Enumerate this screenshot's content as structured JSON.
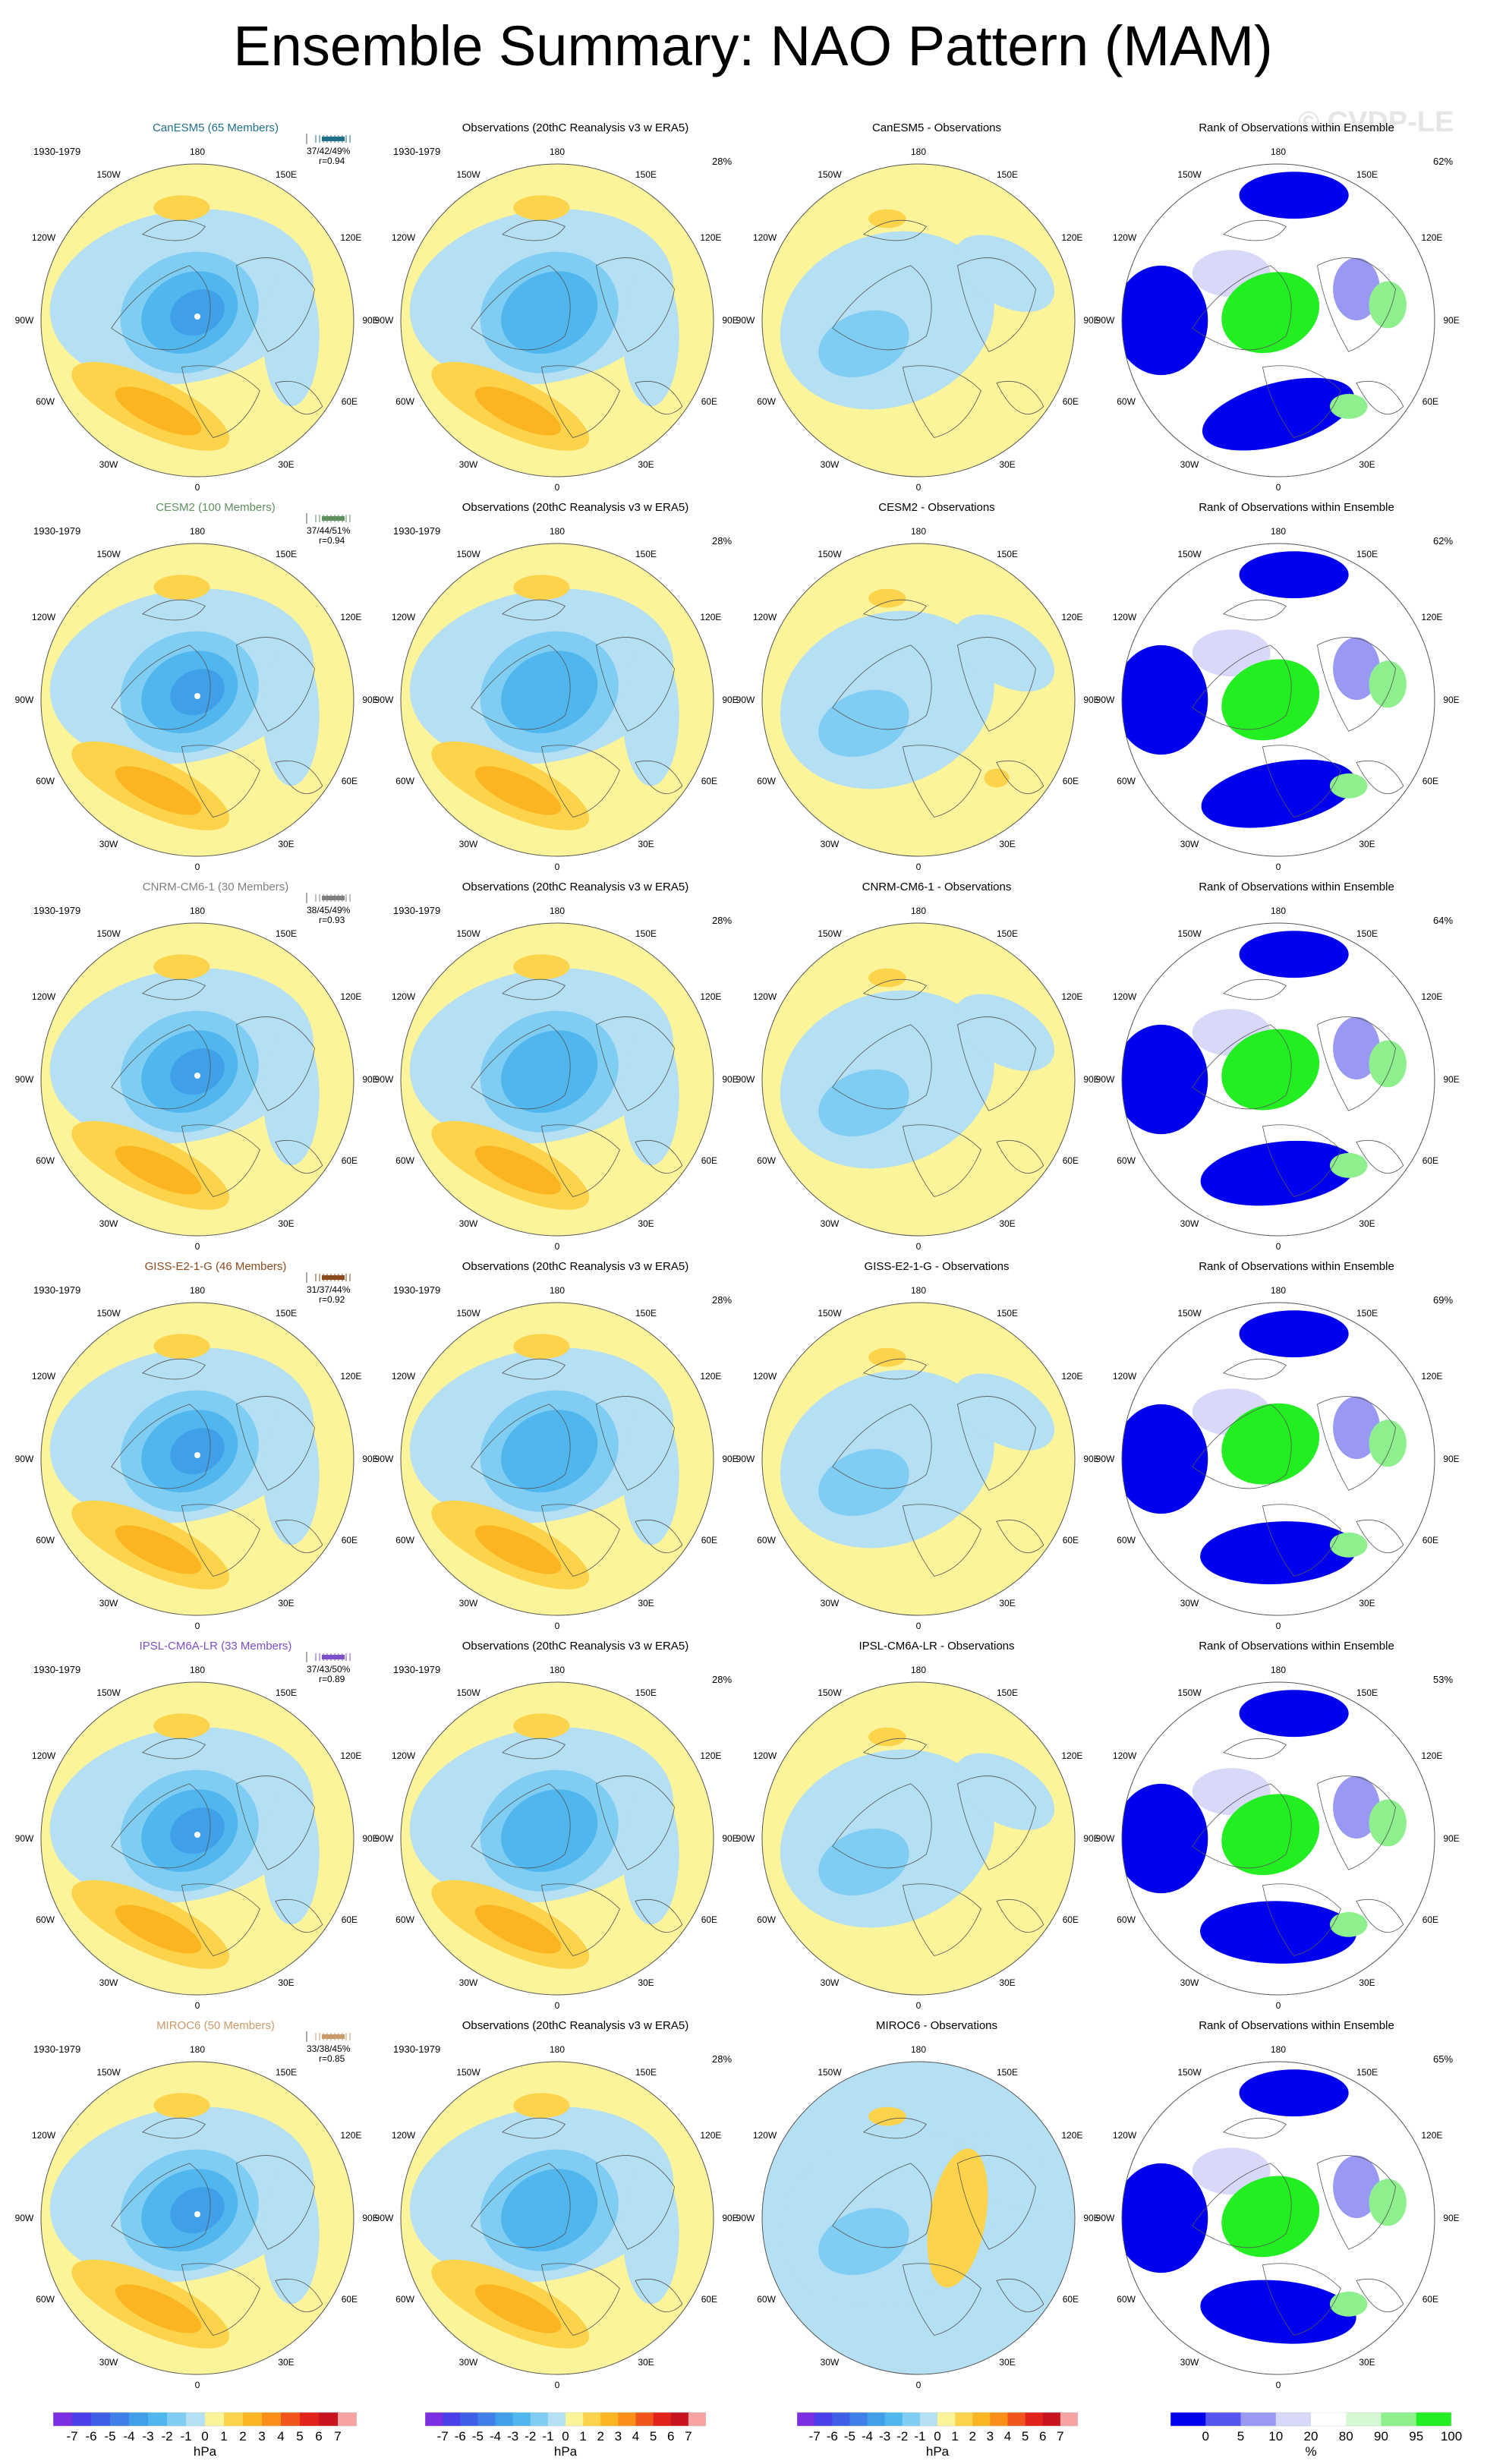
{
  "title": "Ensemble Summary: NAO Pattern (MAM)",
  "watermark": "© CVDP-LE",
  "period": "1930-1979",
  "obs_title": "Observations (20thC Reanalysis v3 w ERA5)",
  "obs_pct": "28%",
  "rank_title": "Rank of Observations within Ensemble",
  "longitudes": {
    "n": "180",
    "nw": "150W",
    "ne": "150E",
    "wnw": "120W",
    "ene": "120E",
    "w": "90W",
    "e": "90E",
    "wsw": "60W",
    "ese": "60E",
    "sw": "30W",
    "se": "30E",
    "s": "0"
  },
  "rows": [
    {
      "model": "CanESM5 (65 Members)",
      "model_color": "#1f6f8b",
      "stat1": "37/42/49%",
      "stat2": "r=0.94",
      "diff_title": "CanESM5 - Observations",
      "rank_pct": "62%"
    },
    {
      "model": "CESM2 (100 Members)",
      "model_color": "#5f8f5f",
      "stat1": "37/44/51%",
      "stat2": "r=0.94",
      "diff_title": "CESM2 - Observations",
      "rank_pct": "62%"
    },
    {
      "model": "CNRM-CM6-1 (30 Members)",
      "model_color": "#7f7f7f",
      "stat1": "38/45/49%",
      "stat2": "r=0.93",
      "diff_title": "CNRM-CM6-1 - Observations",
      "rank_pct": "64%"
    },
    {
      "model": "GISS-E2-1-G (46 Members)",
      "model_color": "#8b4a1e",
      "stat1": "31/37/44%",
      "stat2": "r=0.92",
      "diff_title": "GISS-E2-1-G - Observations",
      "rank_pct": "69%"
    },
    {
      "model": "IPSL-CM6A-LR (33 Members)",
      "model_color": "#7a4fc9",
      "stat1": "37/43/50%",
      "stat2": "r=0.89",
      "diff_title": "IPSL-CM6A-LR - Observations",
      "rank_pct": "53%"
    },
    {
      "model": "MIROC6 (50 Members)",
      "model_color": "#c79a6a",
      "stat1": "33/38/45%",
      "stat2": "r=0.85",
      "diff_title": "MIROC6 - Observations",
      "rank_pct": "65%"
    }
  ],
  "colorbar_hpa": {
    "labels": [
      "-7",
      "-6",
      "-5",
      "-4",
      "-3",
      "-2",
      "-1",
      "0",
      "1",
      "2",
      "3",
      "4",
      "5",
      "6",
      "7"
    ],
    "colors": [
      "#7b2fe0",
      "#4a3fe8",
      "#3f5fe8",
      "#3f7fe8",
      "#3f9fe8",
      "#4fb7ee",
      "#7fcdf2",
      "#b5dff3",
      "#fbf49a",
      "#fcd34a",
      "#fcb522",
      "#f98f19",
      "#f0561c",
      "#e2231b",
      "#c8141e",
      "#f7a3a3"
    ],
    "units": "hPa"
  },
  "colorbar_pct": {
    "labels": [
      "0",
      "5",
      "10",
      "20",
      "80",
      "90",
      "95",
      "100"
    ],
    "colors": [
      "#0000ee",
      "#5555f0",
      "#9999f4",
      "#d8d8f8",
      "#ffffff",
      "#d5f8d5",
      "#8df08d",
      "#22ee22"
    ],
    "units": "%"
  }
}
